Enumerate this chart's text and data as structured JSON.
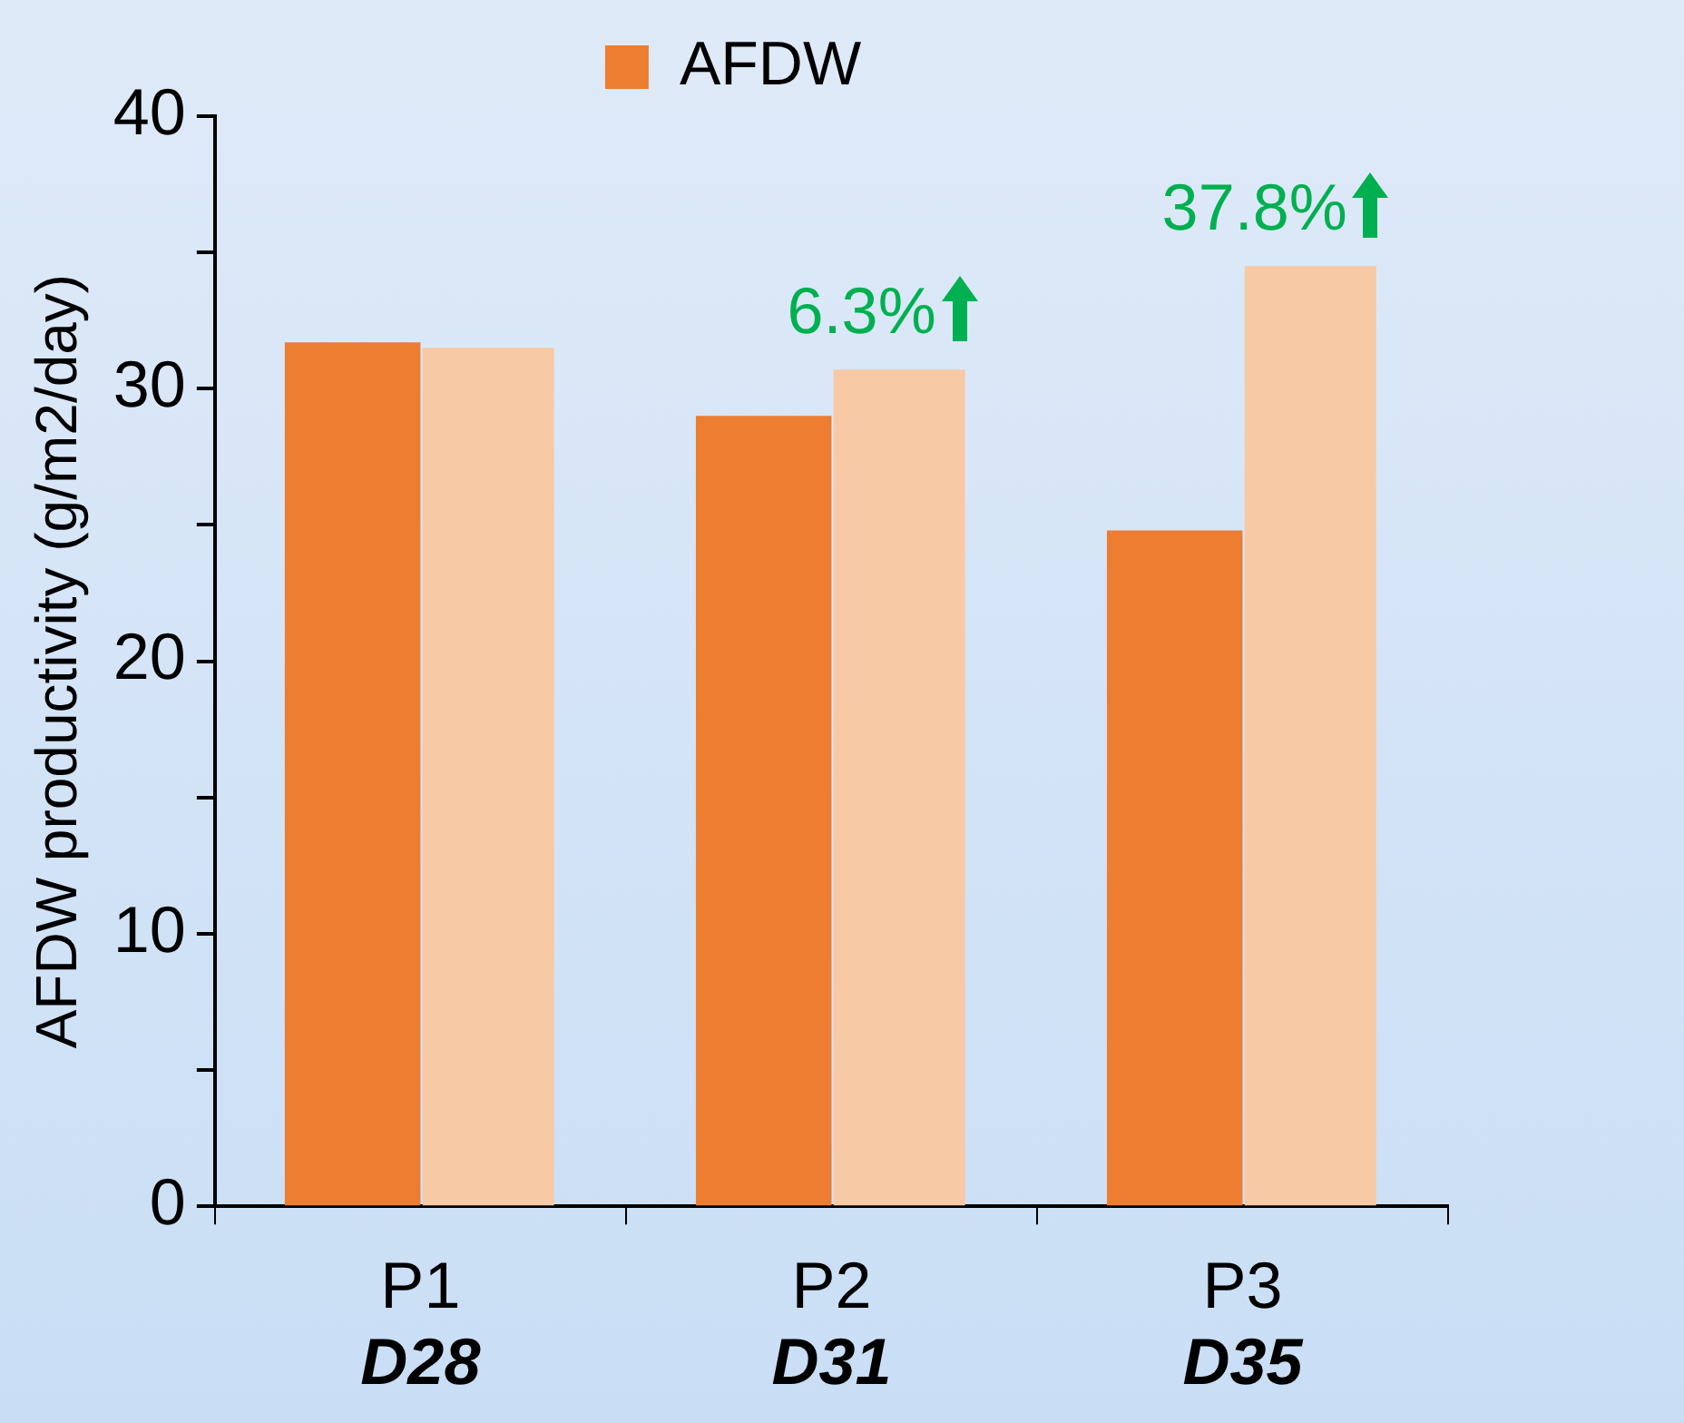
{
  "chart_data": {
    "type": "bar",
    "ylabel": "AFDW productivity (g/m2/day)",
    "categories": [
      "P1\nD28",
      "P2\nD31",
      "P3\nD35"
    ],
    "series": [
      {
        "name": "AFDW",
        "color": "#ed7d31",
        "values": [
          31.7,
          29.0,
          24.8
        ]
      },
      {
        "color": "#f8c9a5",
        "values": [
          31.5,
          30.7,
          34.5
        ]
      }
    ],
    "ylim": [
      0,
      40
    ],
    "yticks": [
      0,
      {
        "value": 5,
        "label": null
      },
      10,
      {
        "value": 15,
        "label": null
      },
      20,
      {
        "value": 25,
        "label": null
      },
      30,
      {
        "value": 35,
        "label": null
      },
      40
    ],
    "annotations": [
      {
        "text": "6.3%",
        "x": "P2\nD31",
        "y": 30.7
      },
      {
        "text": "37.8%",
        "x": "P3\nD35",
        "y": 34.5
      }
    ],
    "grid": false,
    "legend": "top"
  }
}
